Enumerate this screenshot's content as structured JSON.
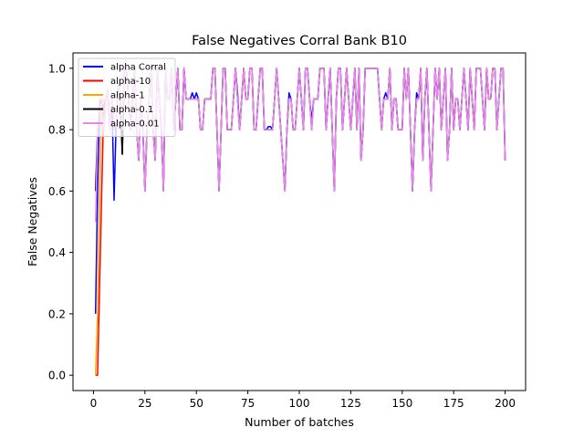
{
  "chart_data": {
    "type": "line",
    "title": "False Negatives Corral Bank B10",
    "xlabel": "Number of batches",
    "ylabel": "False Negatives",
    "xlim": [
      -9.95,
      209.95
    ],
    "ylim": [
      -0.05,
      1.05
    ],
    "x_ticks": [
      0,
      25,
      50,
      75,
      100,
      125,
      150,
      175,
      200
    ],
    "x_tick_labels": [
      "0",
      "25",
      "50",
      "75",
      "100",
      "125",
      "150",
      "175",
      "200"
    ],
    "y_ticks": [
      0.0,
      0.2,
      0.4,
      0.6,
      0.8,
      1.0
    ],
    "y_tick_labels": [
      "0.0",
      "0.2",
      "0.4",
      "0.6",
      "0.8",
      "1.0"
    ],
    "grid": false,
    "legend_position": "upper-left",
    "series": [
      {
        "name": "alpha Corral",
        "color": "#0000ff",
        "x": [
          1,
          2,
          3,
          4,
          5,
          6,
          7,
          8,
          9,
          10,
          11,
          12,
          13,
          14,
          15,
          16,
          17,
          18,
          19,
          20,
          21,
          22,
          23,
          24,
          25,
          26,
          27,
          28,
          29,
          30,
          31,
          32,
          33,
          34,
          35,
          36,
          37,
          38,
          39,
          40,
          41,
          42,
          43,
          44,
          45,
          46,
          47,
          48,
          49,
          50,
          51,
          52,
          53,
          54,
          55,
          56,
          57,
          58,
          59,
          60,
          61,
          62,
          63,
          64,
          65,
          66,
          67,
          68,
          69,
          70,
          71,
          72,
          73,
          74,
          75,
          76,
          77,
          78,
          79,
          80,
          81,
          82,
          83,
          84,
          85,
          86,
          87,
          88,
          89,
          90,
          91,
          92,
          93,
          94,
          95,
          96,
          97,
          98,
          99,
          100,
          101,
          102,
          103,
          104,
          105,
          106,
          107,
          108,
          109,
          110,
          111,
          112,
          113,
          114,
          115,
          116,
          117,
          118,
          119,
          120,
          121,
          122,
          123,
          124,
          125,
          126,
          127,
          128,
          129,
          130,
          131,
          132,
          133,
          134,
          135,
          136,
          137,
          138,
          139,
          140,
          141,
          142,
          143,
          144,
          145,
          146,
          147,
          148,
          149,
          150,
          151,
          152,
          153,
          154,
          155,
          156,
          157,
          158,
          159,
          160,
          161,
          162,
          163,
          164,
          165,
          166,
          167,
          168,
          169,
          170,
          171,
          172,
          173,
          174,
          175,
          176,
          177,
          178,
          179,
          180,
          181,
          182,
          183,
          184,
          185,
          186,
          187,
          188,
          189,
          190,
          191,
          192,
          193,
          194,
          195,
          196,
          197,
          198,
          199,
          200
        ],
        "y": [
          0.2,
          0.6,
          0.88,
          0.9,
          0.8,
          0.9,
          0.93,
          0.8,
          0.9,
          0.57,
          0.82,
          0.95,
          0.9,
          0.72,
          1.0,
          1.0,
          0.9,
          0.8,
          0.9,
          1.0,
          0.8,
          0.7,
          0.9,
          0.8,
          0.6,
          0.8,
          0.9,
          1.0,
          0.8,
          0.7,
          1.0,
          0.9,
          0.8,
          0.6,
          1.0,
          0.9,
          0.9,
          1.0,
          0.8,
          0.9,
          1.0,
          0.8,
          0.8,
          1.0,
          0.9,
          0.9,
          0.9,
          0.92,
          0.9,
          0.92,
          0.9,
          0.8,
          0.8,
          0.9,
          0.9,
          0.9,
          0.9,
          1.0,
          1.0,
          0.8,
          0.6,
          0.8,
          1.0,
          1.0,
          0.8,
          0.8,
          0.8,
          0.9,
          1.0,
          0.92,
          0.8,
          0.9,
          1.0,
          0.9,
          0.9,
          1.0,
          1.0,
          0.8,
          0.8,
          0.9,
          1.0,
          1.0,
          0.8,
          0.8,
          0.81,
          0.81,
          0.8,
          0.9,
          1.0,
          0.9,
          0.8,
          0.7,
          0.6,
          0.8,
          0.92,
          0.9,
          0.8,
          0.8,
          0.9,
          1.0,
          0.9,
          0.8,
          1.0,
          1.0,
          0.9,
          0.83,
          0.9,
          0.9,
          0.9,
          1.0,
          1.0,
          1.0,
          0.8,
          0.9,
          1.0,
          0.8,
          0.6,
          0.9,
          1.0,
          1.0,
          0.8,
          0.9,
          1.0,
          0.9,
          0.8,
          0.9,
          1.0,
          0.8,
          1.0,
          0.7,
          0.8,
          1.0,
          1.0,
          1.0,
          1.0,
          1.0,
          1.0,
          1.0,
          0.9,
          0.8,
          0.9,
          0.92,
          0.9,
          1.0,
          0.8,
          0.9,
          0.9,
          0.8,
          0.8,
          0.8,
          1.0,
          0.9,
          1.0,
          0.8,
          0.6,
          0.8,
          0.92,
          0.9,
          1.0,
          0.7,
          0.9,
          1.0,
          0.8,
          0.6,
          0.8,
          1.0,
          0.9,
          1.0,
          0.8,
          0.9,
          1.0,
          0.7,
          0.8,
          1.0,
          0.8,
          0.9,
          0.9,
          0.8,
          0.9,
          1.0,
          0.9,
          0.8,
          1.0,
          0.9,
          0.8,
          1.0,
          1.0,
          1.0,
          0.9,
          0.8,
          1.0,
          0.9,
          0.9,
          1.0,
          1.0,
          0.8,
          0.9,
          1.0,
          1.0,
          0.7
        ]
      },
      {
        "name": "alpha-10",
        "color": "#ff0000",
        "x": [
          1,
          2,
          3,
          4,
          5,
          6,
          7,
          8
        ],
        "y": [
          0.0,
          0.0,
          0.3,
          0.6,
          0.88,
          0.9,
          0.9,
          0.8
        ]
      },
      {
        "name": "alpha-1",
        "color": "#ffa500",
        "x": [
          1,
          2,
          3,
          4,
          5,
          6,
          7,
          8
        ],
        "y": [
          0.0,
          0.2,
          0.6,
          0.88,
          0.9,
          0.9,
          0.9,
          0.8
        ]
      },
      {
        "name": "alpha-0.1",
        "color": "#000000",
        "x": [
          1,
          2,
          3,
          4,
          5,
          6,
          7,
          8,
          9,
          10,
          11,
          12,
          13,
          14,
          15,
          16,
          17,
          18,
          19,
          20,
          21,
          22,
          23,
          24,
          25,
          26,
          27,
          28,
          29,
          30,
          31,
          32,
          33,
          34,
          35,
          36,
          37,
          38,
          39,
          40,
          41,
          42,
          43,
          44,
          45,
          46,
          47,
          48,
          49,
          50,
          51,
          52,
          53,
          54,
          55,
          56,
          57,
          58,
          59,
          60,
          61,
          62,
          63,
          64,
          65,
          66,
          67,
          68,
          69,
          70,
          71,
          72,
          73,
          74,
          75,
          76,
          77,
          78,
          79,
          80,
          81,
          82,
          83,
          84,
          85,
          86,
          87,
          88,
          89,
          90,
          91,
          92,
          93,
          94,
          95,
          96,
          97,
          98,
          99,
          100,
          101,
          102,
          103,
          104,
          105,
          106,
          107,
          108,
          109,
          110,
          111,
          112,
          113,
          114,
          115,
          116,
          117,
          118,
          119,
          120,
          121,
          122,
          123,
          124,
          125,
          126,
          127,
          128,
          129,
          130,
          131,
          132,
          133,
          134,
          135,
          136,
          137,
          138,
          139,
          140,
          141,
          142,
          143,
          144,
          145,
          146,
          147,
          148,
          149,
          150,
          151,
          152,
          153,
          154,
          155,
          156,
          157,
          158,
          159,
          160,
          161,
          162,
          163,
          164,
          165,
          166,
          167,
          168,
          169,
          170,
          171,
          172,
          173,
          174,
          175,
          176,
          177,
          178,
          179,
          180,
          181,
          182,
          183,
          184,
          185,
          186,
          187,
          188,
          189,
          190,
          191,
          192,
          193,
          194,
          195,
          196,
          197,
          198,
          199,
          200
        ],
        "y": [
          0.6,
          0.8,
          0.9,
          0.9,
          0.8,
          0.9,
          0.93,
          0.8,
          0.9,
          0.8,
          0.82,
          0.95,
          0.9,
          0.72,
          1.0,
          1.0,
          0.9,
          0.8,
          0.9,
          1.0,
          0.8,
          0.7,
          0.9,
          0.8,
          0.6,
          0.8,
          0.9,
          1.0,
          0.8,
          0.7,
          1.0,
          0.9,
          0.8,
          0.6,
          1.0,
          0.9,
          0.9,
          1.0,
          0.8,
          0.9,
          1.0,
          0.8,
          0.8,
          1.0,
          0.9,
          0.9,
          0.9,
          0.9,
          0.9,
          0.9,
          0.9,
          0.8,
          0.8,
          0.9,
          0.9,
          0.9,
          0.9,
          1.0,
          1.0,
          0.8,
          0.6,
          0.8,
          1.0,
          1.0,
          0.8,
          0.8,
          0.8,
          0.9,
          1.0,
          0.9,
          0.8,
          0.9,
          1.0,
          0.9,
          0.9,
          1.0,
          1.0,
          0.8,
          0.8,
          0.9,
          1.0,
          1.0,
          0.8,
          0.8,
          0.8,
          0.8,
          0.8,
          0.9,
          1.0,
          0.9,
          0.8,
          0.7,
          0.6,
          0.8,
          0.9,
          0.9,
          0.8,
          0.8,
          0.9,
          1.0,
          0.9,
          0.8,
          1.0,
          1.0,
          0.9,
          0.8,
          0.9,
          0.9,
          0.9,
          1.0,
          1.0,
          1.0,
          0.8,
          0.9,
          1.0,
          0.8,
          0.6,
          0.9,
          1.0,
          1.0,
          0.8,
          0.9,
          1.0,
          0.9,
          0.8,
          0.9,
          1.0,
          0.8,
          1.0,
          0.7,
          0.8,
          1.0,
          1.0,
          1.0,
          1.0,
          1.0,
          1.0,
          1.0,
          0.9,
          0.8,
          0.9,
          0.9,
          0.9,
          1.0,
          0.8,
          0.9,
          0.9,
          0.8,
          0.8,
          0.8,
          1.0,
          0.9,
          1.0,
          0.8,
          0.6,
          0.8,
          0.9,
          0.9,
          1.0,
          0.7,
          0.9,
          1.0,
          0.8,
          0.6,
          0.8,
          1.0,
          0.9,
          1.0,
          0.8,
          0.9,
          1.0,
          0.7,
          0.8,
          1.0,
          0.8,
          0.9,
          0.9,
          0.8,
          0.9,
          1.0,
          0.9,
          0.8,
          1.0,
          0.9,
          0.8,
          1.0,
          1.0,
          1.0,
          0.9,
          0.8,
          1.0,
          0.9,
          0.9,
          1.0,
          1.0,
          0.8,
          0.9,
          1.0,
          1.0,
          0.7
        ]
      },
      {
        "name": "alpha-0.01",
        "color": "#ee82ee",
        "x": [
          1,
          2,
          3,
          4,
          5,
          6,
          7,
          8,
          9,
          10,
          11,
          12,
          13,
          14,
          15,
          16,
          17,
          18,
          19,
          20,
          21,
          22,
          23,
          24,
          25,
          26,
          27,
          28,
          29,
          30,
          31,
          32,
          33,
          34,
          35,
          36,
          37,
          38,
          39,
          40,
          41,
          42,
          43,
          44,
          45,
          46,
          47,
          48,
          49,
          50,
          51,
          52,
          53,
          54,
          55,
          56,
          57,
          58,
          59,
          60,
          61,
          62,
          63,
          64,
          65,
          66,
          67,
          68,
          69,
          70,
          71,
          72,
          73,
          74,
          75,
          76,
          77,
          78,
          79,
          80,
          81,
          82,
          83,
          84,
          85,
          86,
          87,
          88,
          89,
          90,
          91,
          92,
          93,
          94,
          95,
          96,
          97,
          98,
          99,
          100,
          101,
          102,
          103,
          104,
          105,
          106,
          107,
          108,
          109,
          110,
          111,
          112,
          113,
          114,
          115,
          116,
          117,
          118,
          119,
          120,
          121,
          122,
          123,
          124,
          125,
          126,
          127,
          128,
          129,
          130,
          131,
          132,
          133,
          134,
          135,
          136,
          137,
          138,
          139,
          140,
          141,
          142,
          143,
          144,
          145,
          146,
          147,
          148,
          149,
          150,
          151,
          152,
          153,
          154,
          155,
          156,
          157,
          158,
          159,
          160,
          161,
          162,
          163,
          164,
          165,
          166,
          167,
          168,
          169,
          170,
          171,
          172,
          173,
          174,
          175,
          176,
          177,
          178,
          179,
          180,
          181,
          182,
          183,
          184,
          185,
          186,
          187,
          188,
          189,
          190,
          191,
          192,
          193,
          194,
          195,
          196,
          197,
          198,
          199,
          200
        ],
        "y": [
          0.5,
          0.8,
          0.9,
          0.9,
          0.8,
          0.9,
          0.93,
          0.8,
          0.9,
          0.8,
          0.82,
          0.95,
          0.9,
          0.8,
          1.0,
          1.0,
          0.9,
          0.8,
          0.9,
          1.0,
          0.8,
          0.7,
          0.9,
          0.8,
          0.6,
          0.8,
          0.9,
          1.0,
          0.8,
          0.7,
          1.0,
          0.9,
          0.8,
          0.6,
          1.0,
          0.9,
          0.9,
          1.0,
          0.8,
          0.9,
          1.0,
          0.8,
          0.8,
          1.0,
          0.9,
          0.9,
          0.9,
          0.9,
          0.9,
          0.9,
          0.9,
          0.8,
          0.8,
          0.9,
          0.9,
          0.9,
          0.9,
          1.0,
          1.0,
          0.8,
          0.6,
          0.8,
          1.0,
          1.0,
          0.8,
          0.8,
          0.8,
          0.9,
          1.0,
          0.9,
          0.8,
          0.9,
          1.0,
          0.9,
          0.9,
          1.0,
          1.0,
          0.8,
          0.8,
          0.9,
          1.0,
          1.0,
          0.8,
          0.8,
          0.8,
          0.8,
          0.8,
          0.9,
          1.0,
          0.9,
          0.8,
          0.7,
          0.6,
          0.8,
          0.9,
          0.9,
          0.8,
          0.8,
          0.9,
          1.0,
          0.9,
          0.8,
          1.0,
          1.0,
          0.9,
          0.8,
          0.9,
          0.9,
          0.9,
          1.0,
          1.0,
          1.0,
          0.8,
          0.9,
          1.0,
          0.8,
          0.6,
          0.9,
          1.0,
          1.0,
          0.8,
          0.9,
          1.0,
          0.9,
          0.8,
          0.9,
          1.0,
          0.8,
          1.0,
          0.7,
          0.8,
          1.0,
          1.0,
          1.0,
          1.0,
          1.0,
          1.0,
          1.0,
          0.9,
          0.8,
          0.9,
          0.9,
          0.9,
          1.0,
          0.8,
          0.9,
          0.9,
          0.8,
          0.8,
          0.8,
          1.0,
          0.9,
          1.0,
          0.8,
          0.6,
          0.8,
          0.9,
          0.9,
          1.0,
          0.7,
          0.9,
          1.0,
          0.8,
          0.6,
          0.8,
          1.0,
          0.9,
          1.0,
          0.8,
          0.9,
          1.0,
          0.7,
          0.8,
          1.0,
          0.8,
          0.9,
          0.9,
          0.8,
          0.9,
          1.0,
          0.9,
          0.8,
          1.0,
          0.9,
          0.8,
          1.0,
          1.0,
          1.0,
          0.9,
          0.8,
          1.0,
          0.9,
          0.9,
          1.0,
          1.0,
          0.8,
          0.9,
          1.0,
          1.0,
          0.7
        ]
      }
    ]
  }
}
